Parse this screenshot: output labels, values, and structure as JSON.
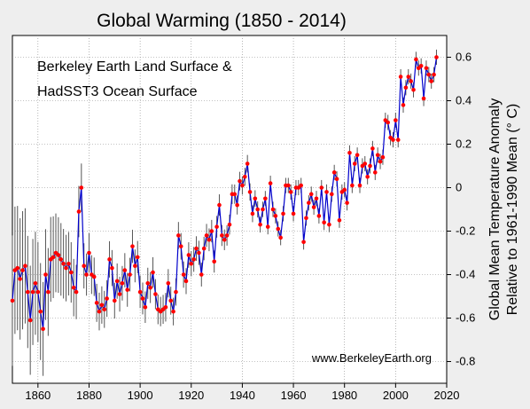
{
  "chart_data": {
    "type": "line",
    "title": "Global Warming (1850 - 2014)",
    "ylabel_line1": "Global Mean Temperature Anomaly",
    "ylabel_line2": "Relative to 1961-1990 Mean (° C)",
    "annotation_line1": "Berkeley Earth Land Surface &",
    "annotation_line2": "HadSST3 Ocean Surface",
    "source": "www.BerkeleyEarth.org",
    "xlim": [
      1850,
      2020
    ],
    "ylim": [
      -0.9,
      0.7
    ],
    "x_ticks": [
      1860,
      1880,
      1900,
      1920,
      1940,
      1960,
      1980,
      2000,
      2020
    ],
    "x_tick_labels": [
      "1860",
      "1880",
      "1900",
      "1920",
      "1940",
      "1960",
      "1980",
      "2000",
      "2020"
    ],
    "y_ticks": [
      -0.8,
      -0.6,
      -0.4,
      -0.2,
      0,
      0.2,
      0.4,
      0.6
    ],
    "y_tick_labels": [
      "-0.8",
      "-0.6",
      "-0.4",
      "-0.2",
      "0",
      "0.2",
      "0.4",
      "0.6"
    ],
    "grid": true,
    "line_color": "#0000cc",
    "marker_color": "#ff0000",
    "errorbar_color": "#555555",
    "series": [
      {
        "x_start": 1850,
        "x_end": 2014,
        "values": [
          -0.52,
          -0.38,
          -0.37,
          -0.42,
          -0.38,
          -0.36,
          -0.48,
          -0.61,
          -0.48,
          -0.44,
          -0.48,
          -0.57,
          -0.65,
          -0.4,
          -0.48,
          -0.33,
          -0.32,
          -0.3,
          -0.31,
          -0.33,
          -0.35,
          -0.37,
          -0.35,
          -0.39,
          -0.46,
          -0.48,
          -0.11,
          0.0,
          -0.36,
          -0.4,
          -0.3,
          -0.4,
          -0.41,
          -0.53,
          -0.57,
          -0.54,
          -0.56,
          -0.51,
          -0.33,
          -0.37,
          -0.52,
          -0.43,
          -0.49,
          -0.44,
          -0.38,
          -0.47,
          -0.4,
          -0.27,
          -0.36,
          -0.32,
          -0.48,
          -0.51,
          -0.55,
          -0.44,
          -0.46,
          -0.39,
          -0.49,
          -0.56,
          -0.57,
          -0.56,
          -0.55,
          -0.44,
          -0.52,
          -0.57,
          -0.48,
          -0.22,
          -0.27,
          -0.4,
          -0.43,
          -0.31,
          -0.35,
          -0.33,
          -0.28,
          -0.3,
          -0.4,
          -0.28,
          -0.22,
          -0.24,
          -0.2,
          -0.34,
          -0.18,
          -0.08,
          -0.22,
          -0.24,
          -0.22,
          -0.17,
          -0.03,
          -0.03,
          -0.08,
          0.03,
          0.01,
          0.05,
          0.11,
          -0.02,
          -0.12,
          -0.05,
          -0.1,
          -0.17,
          -0.1,
          -0.05,
          -0.18,
          0.02,
          -0.1,
          -0.13,
          -0.19,
          -0.23,
          -0.12,
          0.01,
          0.01,
          -0.02,
          -0.12,
          0.0,
          0.0,
          0.01,
          -0.25,
          -0.14,
          -0.07,
          -0.03,
          -0.09,
          -0.05,
          -0.13,
          0.0,
          -0.16,
          -0.02,
          -0.17,
          -0.03,
          0.07,
          0.04,
          -0.15,
          -0.02,
          -0.01,
          -0.07,
          0.16,
          0.01,
          0.11,
          0.15,
          0.01,
          0.1,
          0.11,
          0.05,
          0.1,
          0.18,
          0.07,
          0.15,
          0.12,
          0.14,
          0.31,
          0.3,
          0.23,
          0.22,
          0.31,
          0.22,
          0.51,
          0.38,
          0.46,
          0.51,
          0.49,
          0.45,
          0.59,
          0.55,
          0.56,
          0.41,
          0.55,
          0.52,
          0.49,
          0.52,
          0.6
        ]
      }
    ]
  }
}
